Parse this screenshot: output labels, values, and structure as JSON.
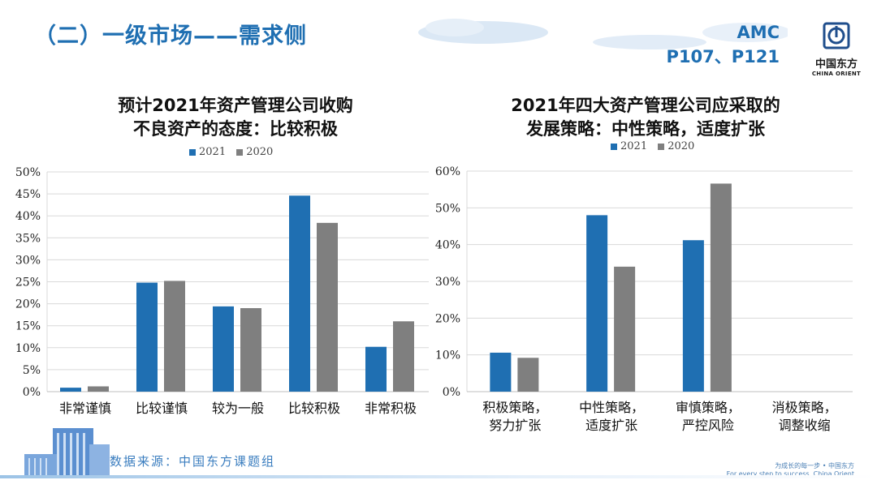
{
  "header": {
    "title": "（二）一级市场——需求侧",
    "ref_line1": "AMC",
    "ref_line2": "P107、P121"
  },
  "logo": {
    "name": "中国东方",
    "sub": "CHINA ORIENT",
    "icon": "china-orient-logo-icon"
  },
  "colors": {
    "series_2021": "#1f6fb2",
    "series_2020": "#7f7f7f",
    "accent": "#1f6fb2"
  },
  "chart_data": [
    {
      "type": "bar",
      "title_line1": "预计2021年资产管理公司收购",
      "title_line2": "不良资产的态度：比较积极",
      "categories": [
        [
          "非常谨慎"
        ],
        [
          "比较谨慎"
        ],
        [
          "较为一般"
        ],
        [
          "比较积极"
        ],
        [
          "非常积极"
        ]
      ],
      "series": [
        {
          "name": "2021",
          "values": [
            0.9,
            24.8,
            19.4,
            44.6,
            10.2
          ]
        },
        {
          "name": "2020",
          "values": [
            1.2,
            25.2,
            19.0,
            38.4,
            16.0
          ]
        }
      ],
      "ylim": [
        0,
        50
      ],
      "yticks": [
        0,
        5,
        10,
        15,
        20,
        25,
        30,
        35,
        40,
        45,
        50
      ],
      "ytick_labels": [
        "0%",
        "5%",
        "10%",
        "15%",
        "20%",
        "25%",
        "30%",
        "35%",
        "40%",
        "45%",
        "50%"
      ],
      "legend": "top-center",
      "grid": true
    },
    {
      "type": "bar",
      "title_line1": "2021年四大资产管理公司应采取的",
      "title_line2": "发展策略：中性策略，适度扩张",
      "categories": [
        [
          "积极策略，",
          "努力扩张"
        ],
        [
          "中性策略，",
          "适度扩张"
        ],
        [
          "审慎策略，",
          "严控风险"
        ],
        [
          "消极策略，",
          "调整收缩"
        ]
      ],
      "series": [
        {
          "name": "2021",
          "values": [
            10.6,
            48.0,
            41.2,
            0
          ]
        },
        {
          "name": "2020",
          "values": [
            9.2,
            34.0,
            56.6,
            0
          ]
        }
      ],
      "ylim": [
        0,
        60
      ],
      "yticks": [
        0,
        10,
        20,
        30,
        40,
        50,
        60
      ],
      "ytick_labels": [
        "0%",
        "10%",
        "20%",
        "30%",
        "40%",
        "50%",
        "60%"
      ],
      "legend": "top-center",
      "grid": true
    }
  ],
  "footer": {
    "source": "数据来源：中国东方课题组",
    "slogan_line1": "为成长的每一步 • 中国东方",
    "slogan_line2": "For every step to success. China Orient"
  }
}
